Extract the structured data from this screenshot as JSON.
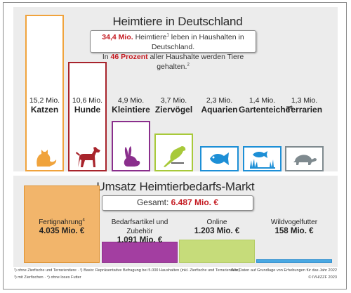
{
  "title": "Heimtiere in Deutschland",
  "info": {
    "line1_value": "34,4 Mio.",
    "line1_text_a": "Heimtiere",
    "line1_sup": "1",
    "line1_text_b": "leben in Haushalten in Deutschland.",
    "line2_pre": "In",
    "line2_value": "46 Prozent",
    "line2_text": "aller Haushalte werden Tiere gehalten.",
    "line2_sup": "2"
  },
  "colors": {
    "katzen": "#f0a33c",
    "hunde": "#a8242c",
    "kleintiere": "#8a2f8c",
    "ziervoegel": "#a8c93a",
    "aquarien": "#1d8fd6",
    "gartenteiche": "#1d8fd6",
    "terrarien": "#7f8a8f",
    "accent_red": "#c41a21",
    "fertig_fill": "#f2b56b",
    "bedarf_fill": "#a33ea1",
    "online_fill": "#c6dc7a",
    "wild_fill": "#49a8e2"
  },
  "chart_data": [
    {
      "type": "bar",
      "title": "Heimtiere in Deutschland",
      "unit": "Mio.",
      "categories": [
        "Katzen",
        "Hunde",
        "Kleintiere",
        "Ziervögel",
        "Aquarien",
        "Gartenteiche",
        "Terrarien"
      ],
      "values": [
        15.2,
        10.6,
        4.9,
        3.7,
        2.3,
        1.4,
        1.3
      ],
      "value_labels": [
        "15,2 Mio.",
        "10,6 Mio.",
        "4,9 Mio.",
        "3,7 Mio.",
        "2,3 Mio.",
        "1,4 Mio.",
        "1,3 Mio."
      ],
      "category_sups": [
        "",
        "",
        "",
        "",
        "",
        "3",
        ""
      ],
      "icons": [
        "cat-icon",
        "dog-icon",
        "rabbit-icon",
        "bird-icon",
        "fish-icon",
        "pond-icon",
        "turtle-icon"
      ]
    },
    {
      "type": "bar",
      "title": "Umsatz Heimtierbedarfs-Markt",
      "total_label": "Gesamt:",
      "total_value": "6.487 Mio. €",
      "categories": [
        "Fertignahrung",
        "Bedarfsartikel und Zubehör",
        "Online",
        "Wildvogelfutter"
      ],
      "category_sups": [
        "4",
        "",
        "",
        ""
      ],
      "values": [
        4035,
        1091,
        1203,
        158
      ],
      "value_labels": [
        "4.035 Mio. €",
        "1.091 Mio. €",
        "1.203 Mio. €",
        "158 Mio. €"
      ]
    }
  ],
  "footnotes": {
    "left1": "¹) ohne Zierfische und Terrarientiere · ²) Basis: Repräsentative Befragung bei 5.000 Haushalten (inkl. Zierfische und Terrarientiere)",
    "left2": "³) mit Zierfischen · ⁴) ohne loses Futter",
    "right1": "Alle Daten auf Grundlage von Erhebungen für das Jahr 2022",
    "right2": "© IVH/ZZF 2023"
  }
}
